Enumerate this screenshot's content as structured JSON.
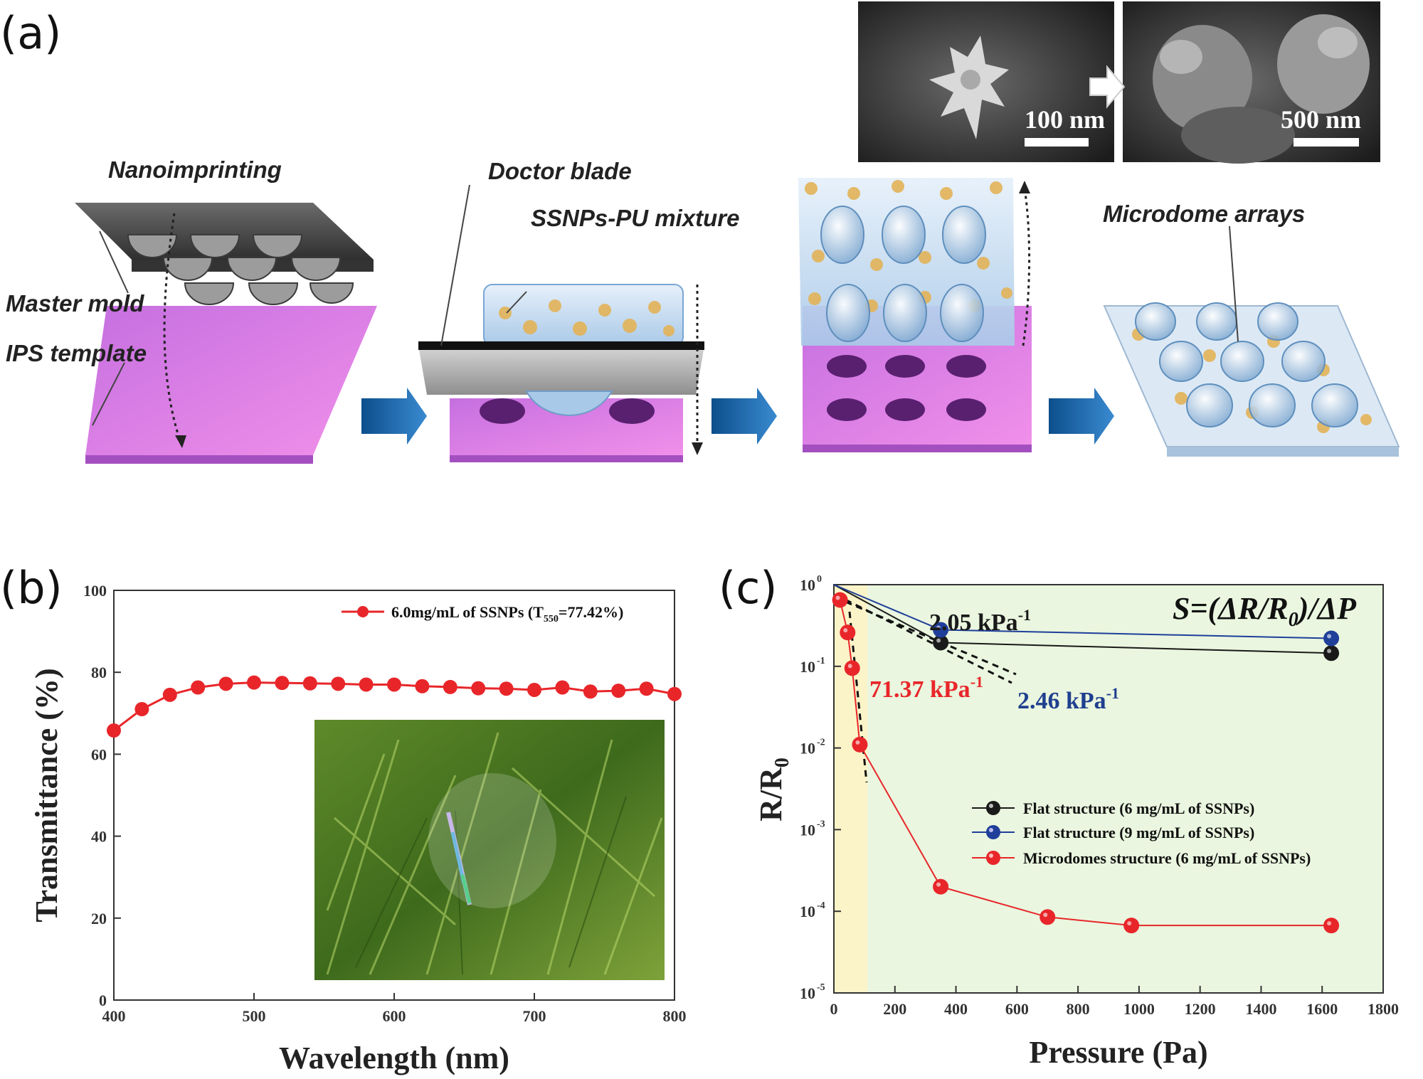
{
  "panel_a": {
    "letter": "(a)",
    "labels": {
      "nanoimprinting": "Nanoimprinting",
      "master_mold": "Master mold",
      "ips_template": "IPS template",
      "doctor_blade": "Doctor blade",
      "ssnps_pu": "SSNPs-PU mixture",
      "microdome": "Microdome arrays"
    },
    "sem": {
      "scale1": "100 nm",
      "scale2": "500 nm"
    },
    "colors": {
      "template": "#e07fe8",
      "mold": "#555555",
      "arrow": "#1f6fb0",
      "film": "#bcd6ee"
    }
  },
  "panel_b": {
    "letter": "(b)",
    "chart_data": {
      "type": "line",
      "xlabel": "Wavelength (nm)",
      "ylabel": "Transmittance (%)",
      "xlim": [
        400,
        800
      ],
      "ylim": [
        0,
        100
      ],
      "xticks": [
        400,
        500,
        600,
        700,
        800
      ],
      "yticks": [
        0,
        20,
        40,
        60,
        80,
        100
      ],
      "series": [
        {
          "name": "6.0mg/mL of SSNPs (T",
          "name_sub": "550",
          "name_suffix": "=77.42%)",
          "color": "#e8262a",
          "x": [
            400,
            420,
            440,
            460,
            480,
            500,
            520,
            540,
            560,
            580,
            600,
            620,
            640,
            660,
            680,
            700,
            720,
            740,
            760,
            780,
            800
          ],
          "y": [
            65.8,
            71.0,
            74.5,
            76.3,
            77.2,
            77.5,
            77.4,
            77.3,
            77.2,
            77.0,
            77.0,
            76.6,
            76.4,
            76.1,
            76.0,
            75.7,
            76.3,
            75.3,
            75.5,
            76.0,
            74.7
          ]
        }
      ]
    }
  },
  "panel_c": {
    "letter": "(c)",
    "equation": "S=(ΔR/R",
    "equation_sub": "0",
    "equation_suffix": ")/ΔP",
    "annotations": [
      {
        "text": "2.05 kPa",
        "sup": "-1",
        "color": "#1a1a1a"
      },
      {
        "text": "71.37 kPa",
        "sup": "-1",
        "color": "#e8262a"
      },
      {
        "text": "2.46 kPa",
        "sup": "-1",
        "color": "#1f3f8f"
      }
    ],
    "chart_data": {
      "type": "line",
      "xlabel": "Pressure (Pa)",
      "ylabel": "R/R",
      "ylabel_sub": "0",
      "xlim": [
        0,
        1800
      ],
      "ylim_log10": [
        -5,
        0
      ],
      "yscale": "log",
      "xticks": [
        0,
        200,
        400,
        600,
        800,
        1000,
        1200,
        1400,
        1600,
        1800
      ],
      "yticks": [
        "10^0",
        "10^-1",
        "10^-2",
        "10^-3",
        "10^-4",
        "10^-5"
      ],
      "ytick_base": "10",
      "ytick_exps": [
        "0",
        "-1",
        "-2",
        "-3",
        "-4",
        "-5"
      ],
      "shaded_regions": [
        {
          "x": [
            0,
            110
          ],
          "color": "#fbf4c8"
        },
        {
          "x": [
            110,
            1800
          ],
          "color": "#eaf6df"
        }
      ],
      "series": [
        {
          "name": "Flat structure (6 mg/mL of SSNPs)",
          "color": "#1a1a1a",
          "x": [
            0,
            350,
            1630
          ],
          "y": [
            1.0,
            0.195,
            0.145
          ]
        },
        {
          "name": "Flat structure (9 mg/mL of SSNPs)",
          "color": "#1f3f9a",
          "x": [
            0,
            350,
            1630
          ],
          "y": [
            1.0,
            0.28,
            0.22
          ]
        },
        {
          "name": "Microdomes structure (6 mg/mL of SSNPs)",
          "color": "#e8262a",
          "x": [
            20,
            45,
            60,
            85,
            350,
            700,
            975,
            1630
          ],
          "y": [
            0.65,
            0.26,
            0.095,
            0.011,
            0.0002,
            8.5e-05,
            6.7e-05,
            6.7e-05
          ]
        }
      ]
    }
  }
}
